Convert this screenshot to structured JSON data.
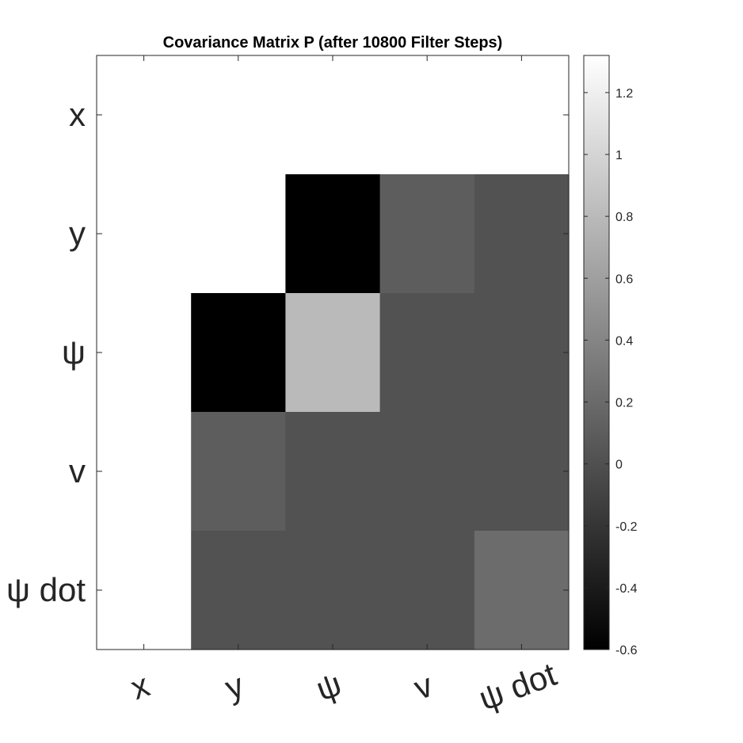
{
  "chart_data": {
    "type": "heatmap",
    "title": "Covariance Matrix P (after 10800 Filter Steps)",
    "row_labels": [
      "x",
      "y",
      "ψ",
      "v",
      "ψ dot"
    ],
    "col_labels": [
      "x",
      "y",
      "ψ",
      "v",
      "ψ dot"
    ],
    "values": [
      [
        1.35,
        1.35,
        1.35,
        1.35,
        1.35
      ],
      [
        1.35,
        1.35,
        -0.62,
        0.1,
        0.02
      ],
      [
        1.35,
        -0.62,
        0.8,
        0.02,
        0.02
      ],
      [
        1.35,
        0.1,
        0.02,
        0.02,
        0.02
      ],
      [
        1.35,
        0.02,
        0.02,
        0.02,
        0.21
      ]
    ],
    "colormap": "gray",
    "color_range": [
      -0.6,
      1.32
    ],
    "colorbar": {
      "location": "right",
      "ticks": [
        -0.6,
        -0.4,
        -0.2,
        0,
        0.2,
        0.4,
        0.6,
        0.8,
        1,
        1.2
      ],
      "tick_labels": [
        "-0.6",
        "-0.4",
        "-0.2",
        "0",
        "0.2",
        "0.4",
        "0.6",
        "0.8",
        "1",
        "1.2"
      ]
    }
  }
}
